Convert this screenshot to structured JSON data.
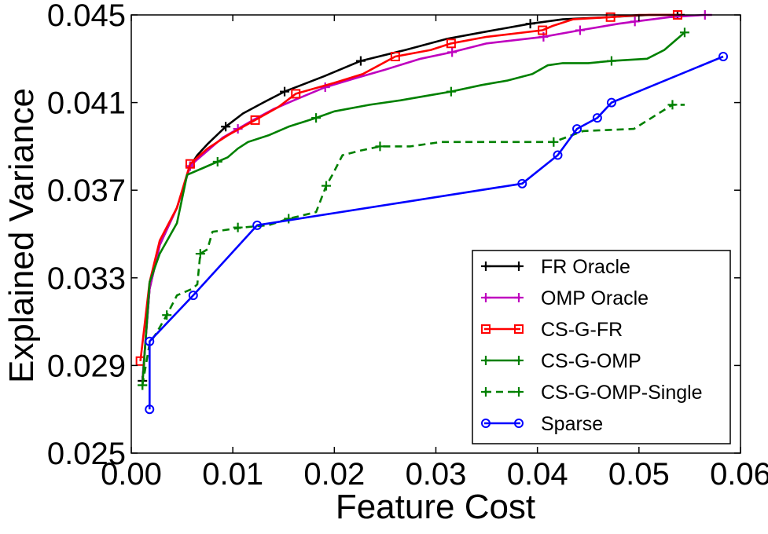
{
  "chart_data": {
    "type": "line",
    "title": "",
    "xlabel": "Feature Cost",
    "ylabel": "Explained Variance",
    "xlim": [
      0.0,
      0.06
    ],
    "ylim": [
      0.025,
      0.045
    ],
    "xticks": [
      0.0,
      0.01,
      0.02,
      0.03,
      0.04,
      0.05,
      0.06
    ],
    "xtick_labels": [
      "0.00",
      "0.01",
      "0.02",
      "0.03",
      "0.04",
      "0.05",
      "0.06"
    ],
    "yticks": [
      0.025,
      0.029,
      0.033,
      0.037,
      0.041,
      0.045
    ],
    "ytick_labels": [
      "0.025",
      "0.029",
      "0.033",
      "0.037",
      "0.041",
      "0.045"
    ],
    "grid": false,
    "legend_position": "bottom-right",
    "series": [
      {
        "name": "FR Oracle",
        "color": "#000000",
        "dash": "solid",
        "marker": "plus",
        "x": [
          0.0011,
          0.0018,
          0.0028,
          0.0045,
          0.0058,
          0.0065,
          0.0075,
          0.0093,
          0.011,
          0.013,
          0.0151,
          0.019,
          0.0226,
          0.027,
          0.031,
          0.0345,
          0.0393,
          0.0425,
          0.047,
          0.051,
          0.0538,
          0.0545
        ],
        "y": [
          0.0283,
          0.0325,
          0.0345,
          0.0362,
          0.0381,
          0.0386,
          0.0391,
          0.0399,
          0.0405,
          0.041,
          0.0415,
          0.0422,
          0.0429,
          0.0434,
          0.0439,
          0.0442,
          0.0446,
          0.0448,
          0.0449,
          0.045,
          0.045,
          0.045
        ],
        "marker_x": [
          0.0011,
          0.0058,
          0.0093,
          0.0151,
          0.0226,
          0.0393,
          0.0538
        ],
        "marker_y": [
          0.0283,
          0.0381,
          0.0399,
          0.0415,
          0.0429,
          0.0446,
          0.045
        ]
      },
      {
        "name": "OMP Oracle",
        "color": "#BF00BF",
        "dash": "solid",
        "marker": "plus",
        "x": [
          0.0011,
          0.0018,
          0.0028,
          0.0045,
          0.0058,
          0.0065,
          0.0075,
          0.009,
          0.0105,
          0.012,
          0.014,
          0.016,
          0.0191,
          0.022,
          0.025,
          0.0285,
          0.0316,
          0.035,
          0.0406,
          0.0442,
          0.048,
          0.0496,
          0.053,
          0.0565,
          0.0572
        ],
        "y": [
          0.0283,
          0.0325,
          0.0345,
          0.0362,
          0.0381,
          0.0384,
          0.0388,
          0.0394,
          0.0398,
          0.0402,
          0.0407,
          0.0411,
          0.0417,
          0.0421,
          0.0425,
          0.043,
          0.0433,
          0.0437,
          0.044,
          0.0443,
          0.0446,
          0.0447,
          0.0449,
          0.045,
          0.045
        ],
        "marker_x": [
          0.0058,
          0.0105,
          0.0191,
          0.0316,
          0.0406,
          0.0442,
          0.0496,
          0.0565
        ],
        "marker_y": [
          0.0381,
          0.0398,
          0.0417,
          0.0433,
          0.044,
          0.0443,
          0.0447,
          0.045
        ]
      },
      {
        "name": "CS-G-FR",
        "color": "#FF0000",
        "dash": "solid",
        "marker": "square",
        "x": [
          0.0009,
          0.0018,
          0.0028,
          0.0045,
          0.0058,
          0.0075,
          0.0095,
          0.0122,
          0.0145,
          0.0162,
          0.02,
          0.0228,
          0.026,
          0.0295,
          0.0315,
          0.035,
          0.0405,
          0.0415,
          0.0435,
          0.0472,
          0.05,
          0.0538
        ],
        "y": [
          0.0292,
          0.0328,
          0.0347,
          0.0362,
          0.0382,
          0.0389,
          0.0395,
          0.0402,
          0.0408,
          0.0414,
          0.0419,
          0.0423,
          0.0431,
          0.0434,
          0.0437,
          0.044,
          0.0443,
          0.0445,
          0.0448,
          0.0449,
          0.045,
          0.045
        ],
        "marker_x": [
          0.0009,
          0.0058,
          0.0122,
          0.0162,
          0.026,
          0.0315,
          0.0405,
          0.0472,
          0.0538
        ],
        "marker_y": [
          0.0292,
          0.0382,
          0.0402,
          0.0414,
          0.0431,
          0.0437,
          0.0443,
          0.0449,
          0.045
        ]
      },
      {
        "name": "CS-G-OMP",
        "color": "#008000",
        "dash": "solid",
        "marker": "plus",
        "x": [
          0.0011,
          0.0018,
          0.0028,
          0.0045,
          0.0055,
          0.0075,
          0.0085,
          0.0095,
          0.0105,
          0.0115,
          0.0135,
          0.0155,
          0.0182,
          0.02,
          0.0235,
          0.0265,
          0.029,
          0.0315,
          0.0345,
          0.037,
          0.0395,
          0.041,
          0.0425,
          0.045,
          0.0473,
          0.0508,
          0.0525,
          0.0535,
          0.0545
        ],
        "y": [
          0.0281,
          0.0328,
          0.0341,
          0.0355,
          0.0377,
          0.0381,
          0.0383,
          0.0385,
          0.0389,
          0.0392,
          0.0395,
          0.0399,
          0.0403,
          0.0406,
          0.0409,
          0.0411,
          0.0413,
          0.0415,
          0.0418,
          0.042,
          0.0423,
          0.0427,
          0.0428,
          0.0428,
          0.0429,
          0.043,
          0.0434,
          0.0438,
          0.0442
        ],
        "marker_x": [
          0.0011,
          0.0085,
          0.0182,
          0.0315,
          0.0473,
          0.0545
        ],
        "marker_y": [
          0.0281,
          0.0383,
          0.0403,
          0.0415,
          0.0429,
          0.0442
        ]
      },
      {
        "name": "CS-G-OMP-Single",
        "color": "#008000",
        "dash": "dashed",
        "marker": "plus",
        "x": [
          0.0011,
          0.0018,
          0.0025,
          0.0035,
          0.0045,
          0.006,
          0.0065,
          0.0068,
          0.0075,
          0.008,
          0.011,
          0.0135,
          0.0155,
          0.0182,
          0.0192,
          0.0198,
          0.0208,
          0.0225,
          0.0245,
          0.0275,
          0.0305,
          0.0355,
          0.0375,
          0.0416,
          0.0445,
          0.0495,
          0.0533,
          0.0545
        ],
        "y": [
          0.0281,
          0.03,
          0.0305,
          0.0313,
          0.0322,
          0.0325,
          0.0327,
          0.0341,
          0.0343,
          0.0351,
          0.0353,
          0.0354,
          0.0357,
          0.036,
          0.0372,
          0.0377,
          0.0386,
          0.0388,
          0.039,
          0.039,
          0.0392,
          0.0392,
          0.0392,
          0.0392,
          0.0397,
          0.0398,
          0.0409,
          0.0409
        ],
        "marker_x": [
          0.0011,
          0.0035,
          0.0068,
          0.0105,
          0.0155,
          0.0192,
          0.0245,
          0.0416,
          0.0533
        ],
        "marker_y": [
          0.0281,
          0.0313,
          0.0341,
          0.0353,
          0.0357,
          0.0372,
          0.039,
          0.0392,
          0.0409
        ]
      },
      {
        "name": "Sparse",
        "color": "#0000FF",
        "dash": "solid",
        "marker": "circle",
        "x": [
          0.0018,
          0.0018,
          0.0061,
          0.0124,
          0.0385,
          0.042,
          0.0439,
          0.0459,
          0.0473,
          0.0583
        ],
        "y": [
          0.027,
          0.0301,
          0.0322,
          0.0354,
          0.0373,
          0.0386,
          0.0398,
          0.0403,
          0.041,
          0.0431
        ],
        "marker_x": [
          0.0018,
          0.0018,
          0.0061,
          0.0124,
          0.0385,
          0.042,
          0.0439,
          0.0459,
          0.0473,
          0.0583
        ],
        "marker_y": [
          0.027,
          0.0301,
          0.0322,
          0.0354,
          0.0373,
          0.0386,
          0.0398,
          0.0403,
          0.041,
          0.0431
        ]
      }
    ]
  }
}
